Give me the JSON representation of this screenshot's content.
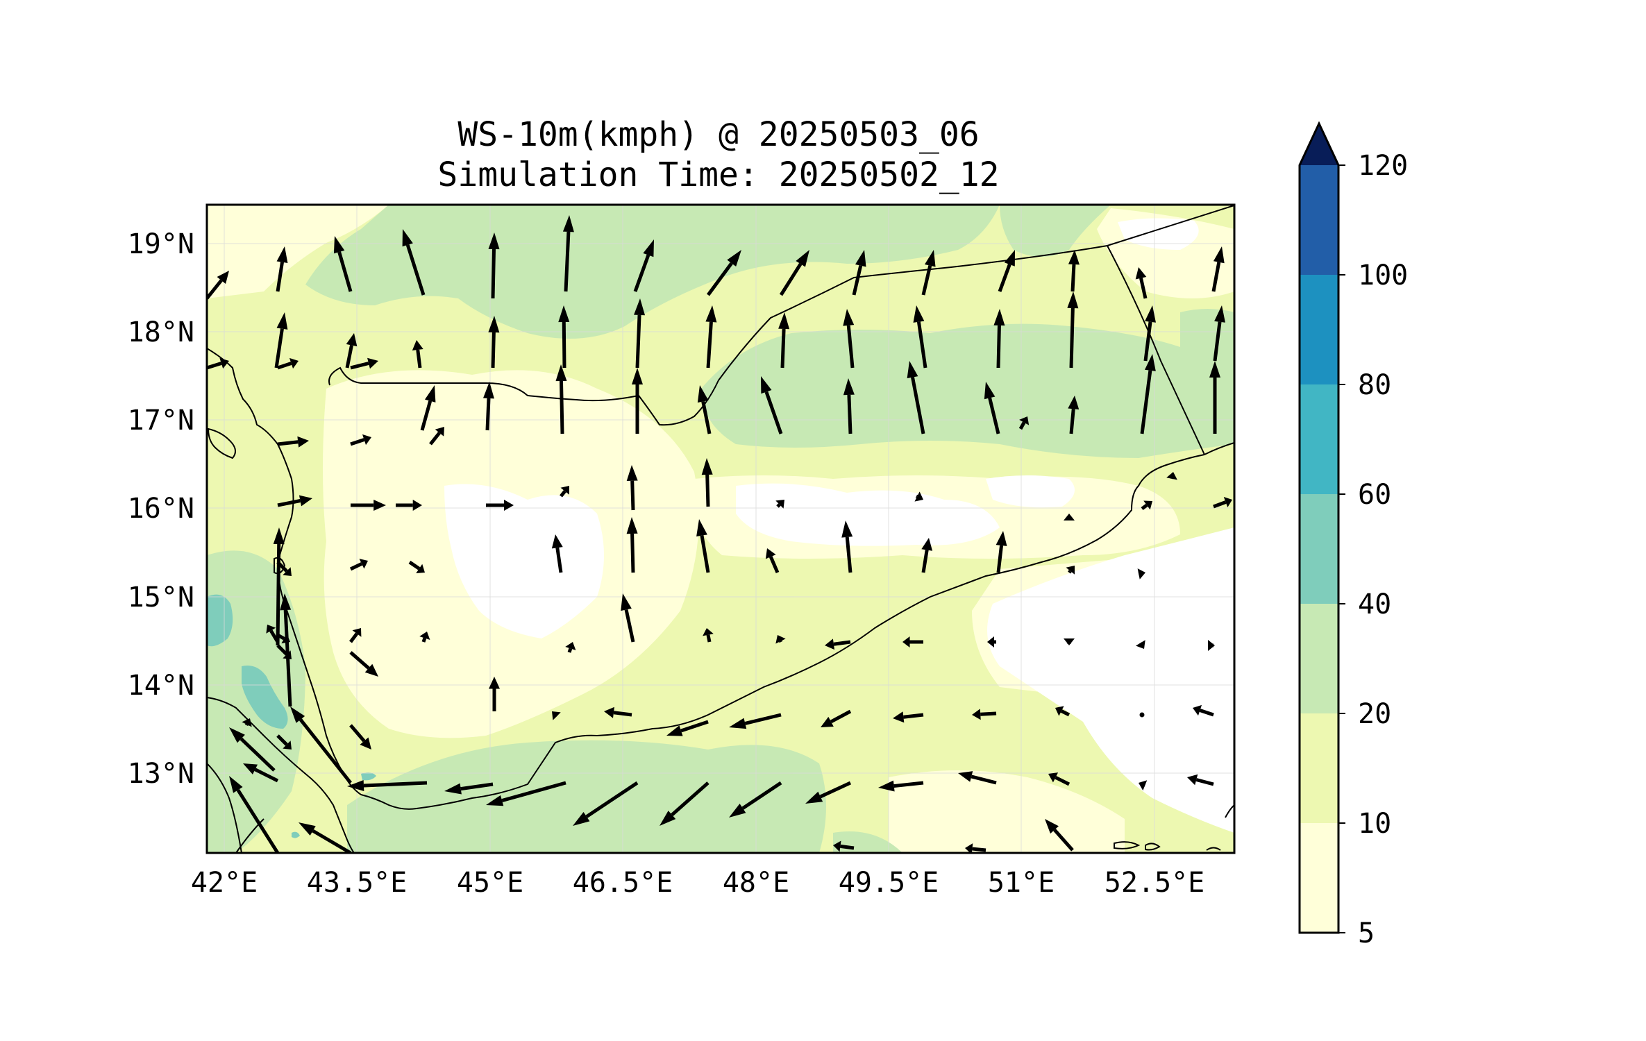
{
  "title": {
    "line1": "WS-10m(kmph) @ 20250503_06",
    "line2": "Simulation Time: 20250502_12"
  },
  "map": {
    "lon_range": [
      41.8,
      53.3
    ],
    "lat_range": [
      12.1,
      19.45
    ],
    "lon_ticks": [
      "42°E",
      "43.5°E",
      "45°E",
      "46.5°E",
      "48°E",
      "49.5°E",
      "51°E",
      "52.5°E"
    ],
    "lat_ticks": [
      "19°N",
      "18°N",
      "17°N",
      "16°N",
      "15°N",
      "14°N",
      "13°N"
    ],
    "grid": true
  },
  "colorbar": {
    "levels": [
      "5",
      "10",
      "20",
      "40",
      "60",
      "80",
      "100",
      "120"
    ],
    "colors": [
      "#ffffd9",
      "#edf8b1",
      "#c7e9b4",
      "#7fcdbb",
      "#41b6c4",
      "#1d91c0",
      "#225ea8",
      "#0c2c84"
    ],
    "extend_color": "#081d58",
    "extend": "max"
  },
  "field_colors": {
    "lt5": "#ffffff",
    "c5_10": "#ffffd9",
    "c10_20": "#edf8b1",
    "c20_40": "#c7e9b4",
    "c40_60": "#7fcdbb"
  }
}
